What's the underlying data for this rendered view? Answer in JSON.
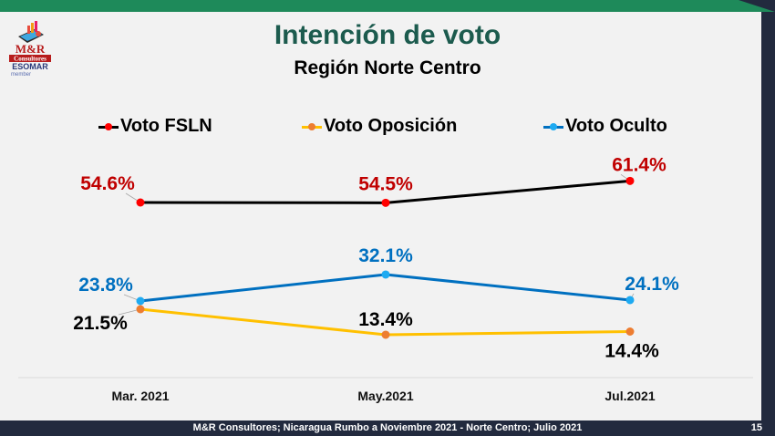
{
  "header": {
    "title": "Intención de voto",
    "subtitle": "Región Norte Centro"
  },
  "logo": {
    "brand_top": "M&R",
    "brand_mid": "Consultores",
    "brand_esomar": "ESOMAR",
    "brand_member": "member"
  },
  "footer": {
    "source": "M&R Consultores; Nicaragua Rumbo a Noviembre 2021 - Norte Centro; Julio 2021",
    "page": "15"
  },
  "colors": {
    "title": "#1c5b4e",
    "fsln_line": "#000000",
    "fsln_marker": "#ff0000",
    "fsln_label": "#c00000",
    "oposicion_line": "#ffc000",
    "oposicion_marker": "#ed7d31",
    "oposicion_label": "#000000",
    "oculto_line": "#0070c0",
    "oculto_marker": "#1eaaf1",
    "oculto_label": "#0070c0"
  },
  "chart_data": {
    "type": "line",
    "title": "Intención de voto",
    "subtitle": "Región Norte Centro",
    "xlabel": "",
    "ylabel": "",
    "categories": [
      "Mar. 2021",
      "May.2021",
      "Jul.2021"
    ],
    "legend_position": "top",
    "grid": false,
    "series": [
      {
        "name": "Voto FSLN",
        "values": [
          54.6,
          54.5,
          61.4
        ],
        "labels": [
          "54.6%",
          "54.5%",
          "61.4%"
        ]
      },
      {
        "name": "Voto Oposición",
        "values": [
          21.5,
          13.4,
          14.4
        ],
        "labels": [
          "21.5%",
          "13.4%",
          "14.4%"
        ]
      },
      {
        "name": "Voto Oculto",
        "values": [
          23.8,
          32.1,
          24.1
        ],
        "labels": [
          "23.8%",
          "32.1%",
          "24.1%"
        ]
      }
    ]
  }
}
